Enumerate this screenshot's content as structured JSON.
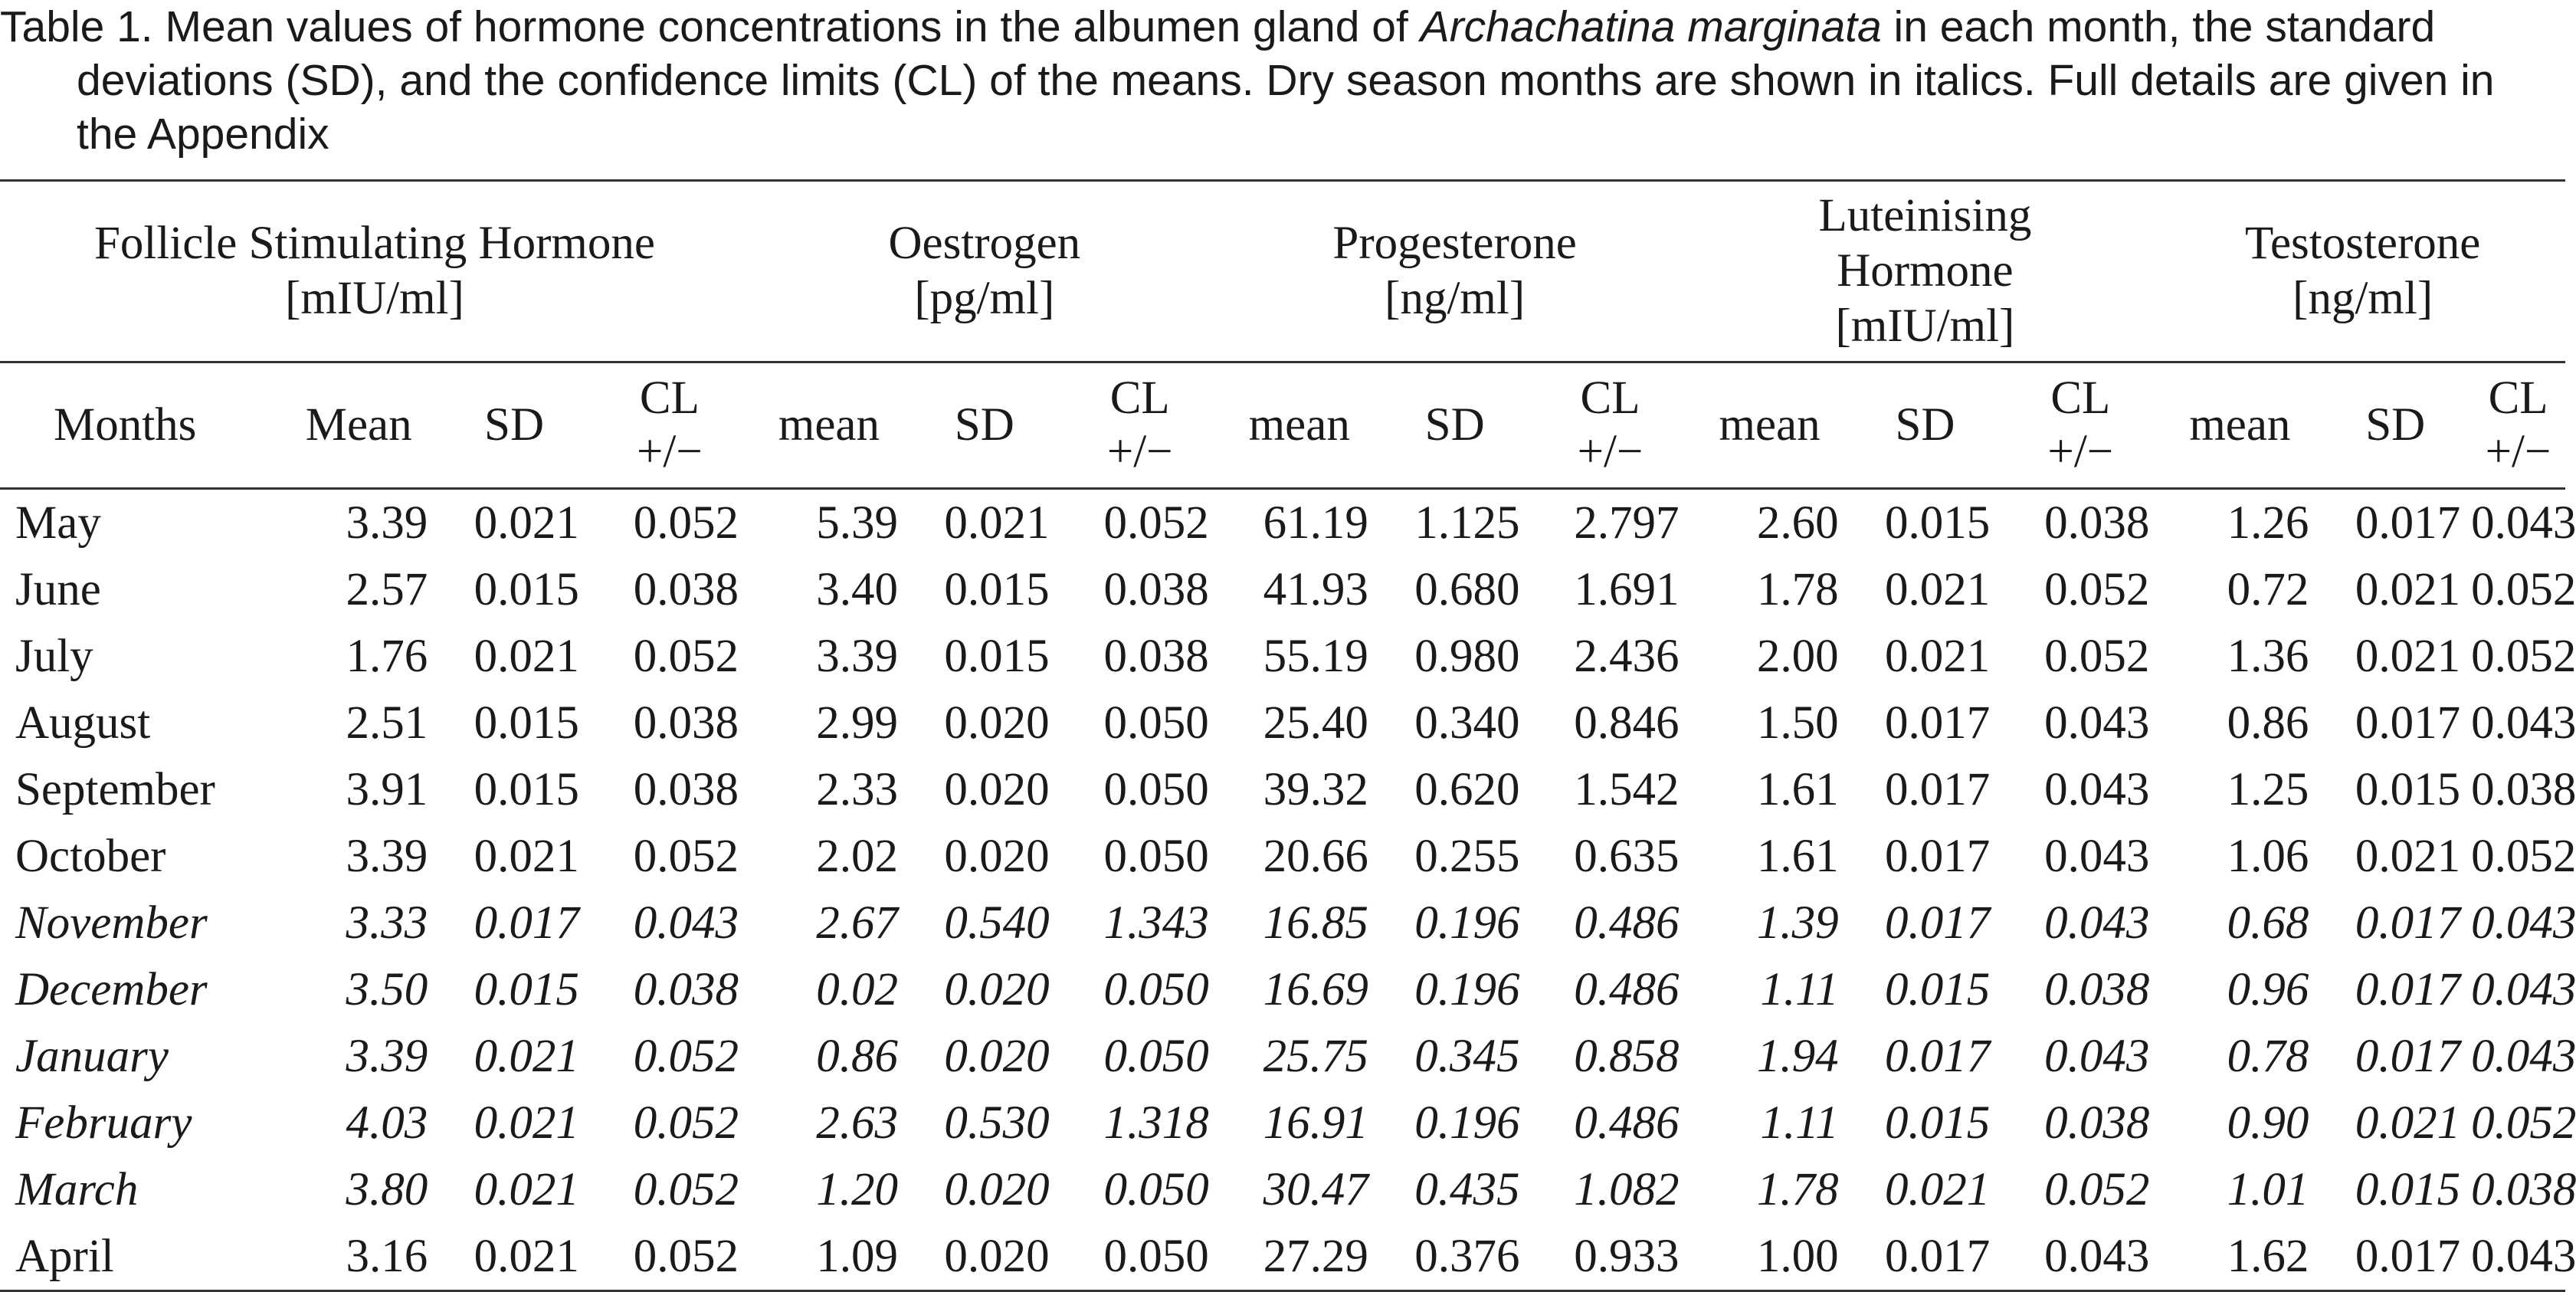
{
  "caption": {
    "before_species": "Table 1. Mean values of hormone concentrations in the albumen gland of ",
    "species": "Archachatina marginata",
    "after_species": " in each month, the standard deviations (SD), and the confidence limits (CL) of the means. Dry season months are shown in italics. Full details are given in the Appendix"
  },
  "groups": [
    {
      "name": "Follicle Stimulating Hormone",
      "unit": "[mIU/ml]"
    },
    {
      "name": "Oestrogen",
      "unit": "[pg/ml]"
    },
    {
      "name": "Progesterone",
      "unit": "[ng/ml]"
    },
    {
      "name": "Luteinising Hormone",
      "unit": "[mIU/ml]"
    },
    {
      "name": "Testosterone",
      "unit": "[ng/ml]"
    }
  ],
  "columns": {
    "months": "Months",
    "fsh": [
      "Mean",
      "SD",
      "CL +/−"
    ],
    "oes": [
      "mean",
      "SD",
      "CL +/−"
    ],
    "prog": [
      "mean",
      "SD",
      "CL +/−"
    ],
    "lh": [
      "mean",
      "SD",
      "CL +/−"
    ],
    "test": [
      "mean",
      "SD",
      "CL +/−"
    ]
  },
  "rows": [
    {
      "month": "May",
      "dry": false,
      "values": [
        "3.39",
        "0.021",
        "0.052",
        "5.39",
        "0.021",
        "0.052",
        "61.19",
        "1.125",
        "2.797",
        "2.60",
        "0.015",
        "0.038",
        "1.26",
        "0.017",
        "0.043"
      ]
    },
    {
      "month": "June",
      "dry": false,
      "values": [
        "2.57",
        "0.015",
        "0.038",
        "3.40",
        "0.015",
        "0.038",
        "41.93",
        "0.680",
        "1.691",
        "1.78",
        "0.021",
        "0.052",
        "0.72",
        "0.021",
        "0.052"
      ]
    },
    {
      "month": "July",
      "dry": false,
      "values": [
        "1.76",
        "0.021",
        "0.052",
        "3.39",
        "0.015",
        "0.038",
        "55.19",
        "0.980",
        "2.436",
        "2.00",
        "0.021",
        "0.052",
        "1.36",
        "0.021",
        "0.052"
      ]
    },
    {
      "month": "August",
      "dry": false,
      "values": [
        "2.51",
        "0.015",
        "0.038",
        "2.99",
        "0.020",
        "0.050",
        "25.40",
        "0.340",
        "0.846",
        "1.50",
        "0.017",
        "0.043",
        "0.86",
        "0.017",
        "0.043"
      ]
    },
    {
      "month": "September",
      "dry": false,
      "values": [
        "3.91",
        "0.015",
        "0.038",
        "2.33",
        "0.020",
        "0.050",
        "39.32",
        "0.620",
        "1.542",
        "1.61",
        "0.017",
        "0.043",
        "1.25",
        "0.015",
        "0.038"
      ]
    },
    {
      "month": "October",
      "dry": false,
      "values": [
        "3.39",
        "0.021",
        "0.052",
        "2.02",
        "0.020",
        "0.050",
        "20.66",
        "0.255",
        "0.635",
        "1.61",
        "0.017",
        "0.043",
        "1.06",
        "0.021",
        "0.052"
      ]
    },
    {
      "month": "November",
      "dry": true,
      "values": [
        "3.33",
        "0.017",
        "0.043",
        "2.67",
        "0.540",
        "1.343",
        "16.85",
        "0.196",
        "0.486",
        "1.39",
        "0.017",
        "0.043",
        "0.68",
        "0.017",
        "0.043"
      ]
    },
    {
      "month": "December",
      "dry": true,
      "values": [
        "3.50",
        "0.015",
        "0.038",
        "0.02",
        "0.020",
        "0.050",
        "16.69",
        "0.196",
        "0.486",
        "1.11",
        "0.015",
        "0.038",
        "0.96",
        "0.017",
        "0.043"
      ]
    },
    {
      "month": "January",
      "dry": true,
      "values": [
        "3.39",
        "0.021",
        "0.052",
        "0.86",
        "0.020",
        "0.050",
        "25.75",
        "0.345",
        "0.858",
        "1.94",
        "0.017",
        "0.043",
        "0.78",
        "0.017",
        "0.043"
      ]
    },
    {
      "month": "February",
      "dry": true,
      "values": [
        "4.03",
        "0.021",
        "0.052",
        "2.63",
        "0.530",
        "1.318",
        "16.91",
        "0.196",
        "0.486",
        "1.11",
        "0.015",
        "0.038",
        "0.90",
        "0.021",
        "0.052"
      ]
    },
    {
      "month": "March",
      "dry": true,
      "values": [
        "3.80",
        "0.021",
        "0.052",
        "1.20",
        "0.020",
        "0.050",
        "30.47",
        "0.435",
        "1.082",
        "1.78",
        "0.021",
        "0.052",
        "1.01",
        "0.015",
        "0.038"
      ]
    },
    {
      "month": "April",
      "dry": false,
      "values": [
        "3.16",
        "0.021",
        "0.052",
        "1.09",
        "0.020",
        "0.050",
        "27.29",
        "0.376",
        "0.933",
        "1.00",
        "0.017",
        "0.043",
        "1.62",
        "0.017",
        "0.043"
      ]
    }
  ]
}
